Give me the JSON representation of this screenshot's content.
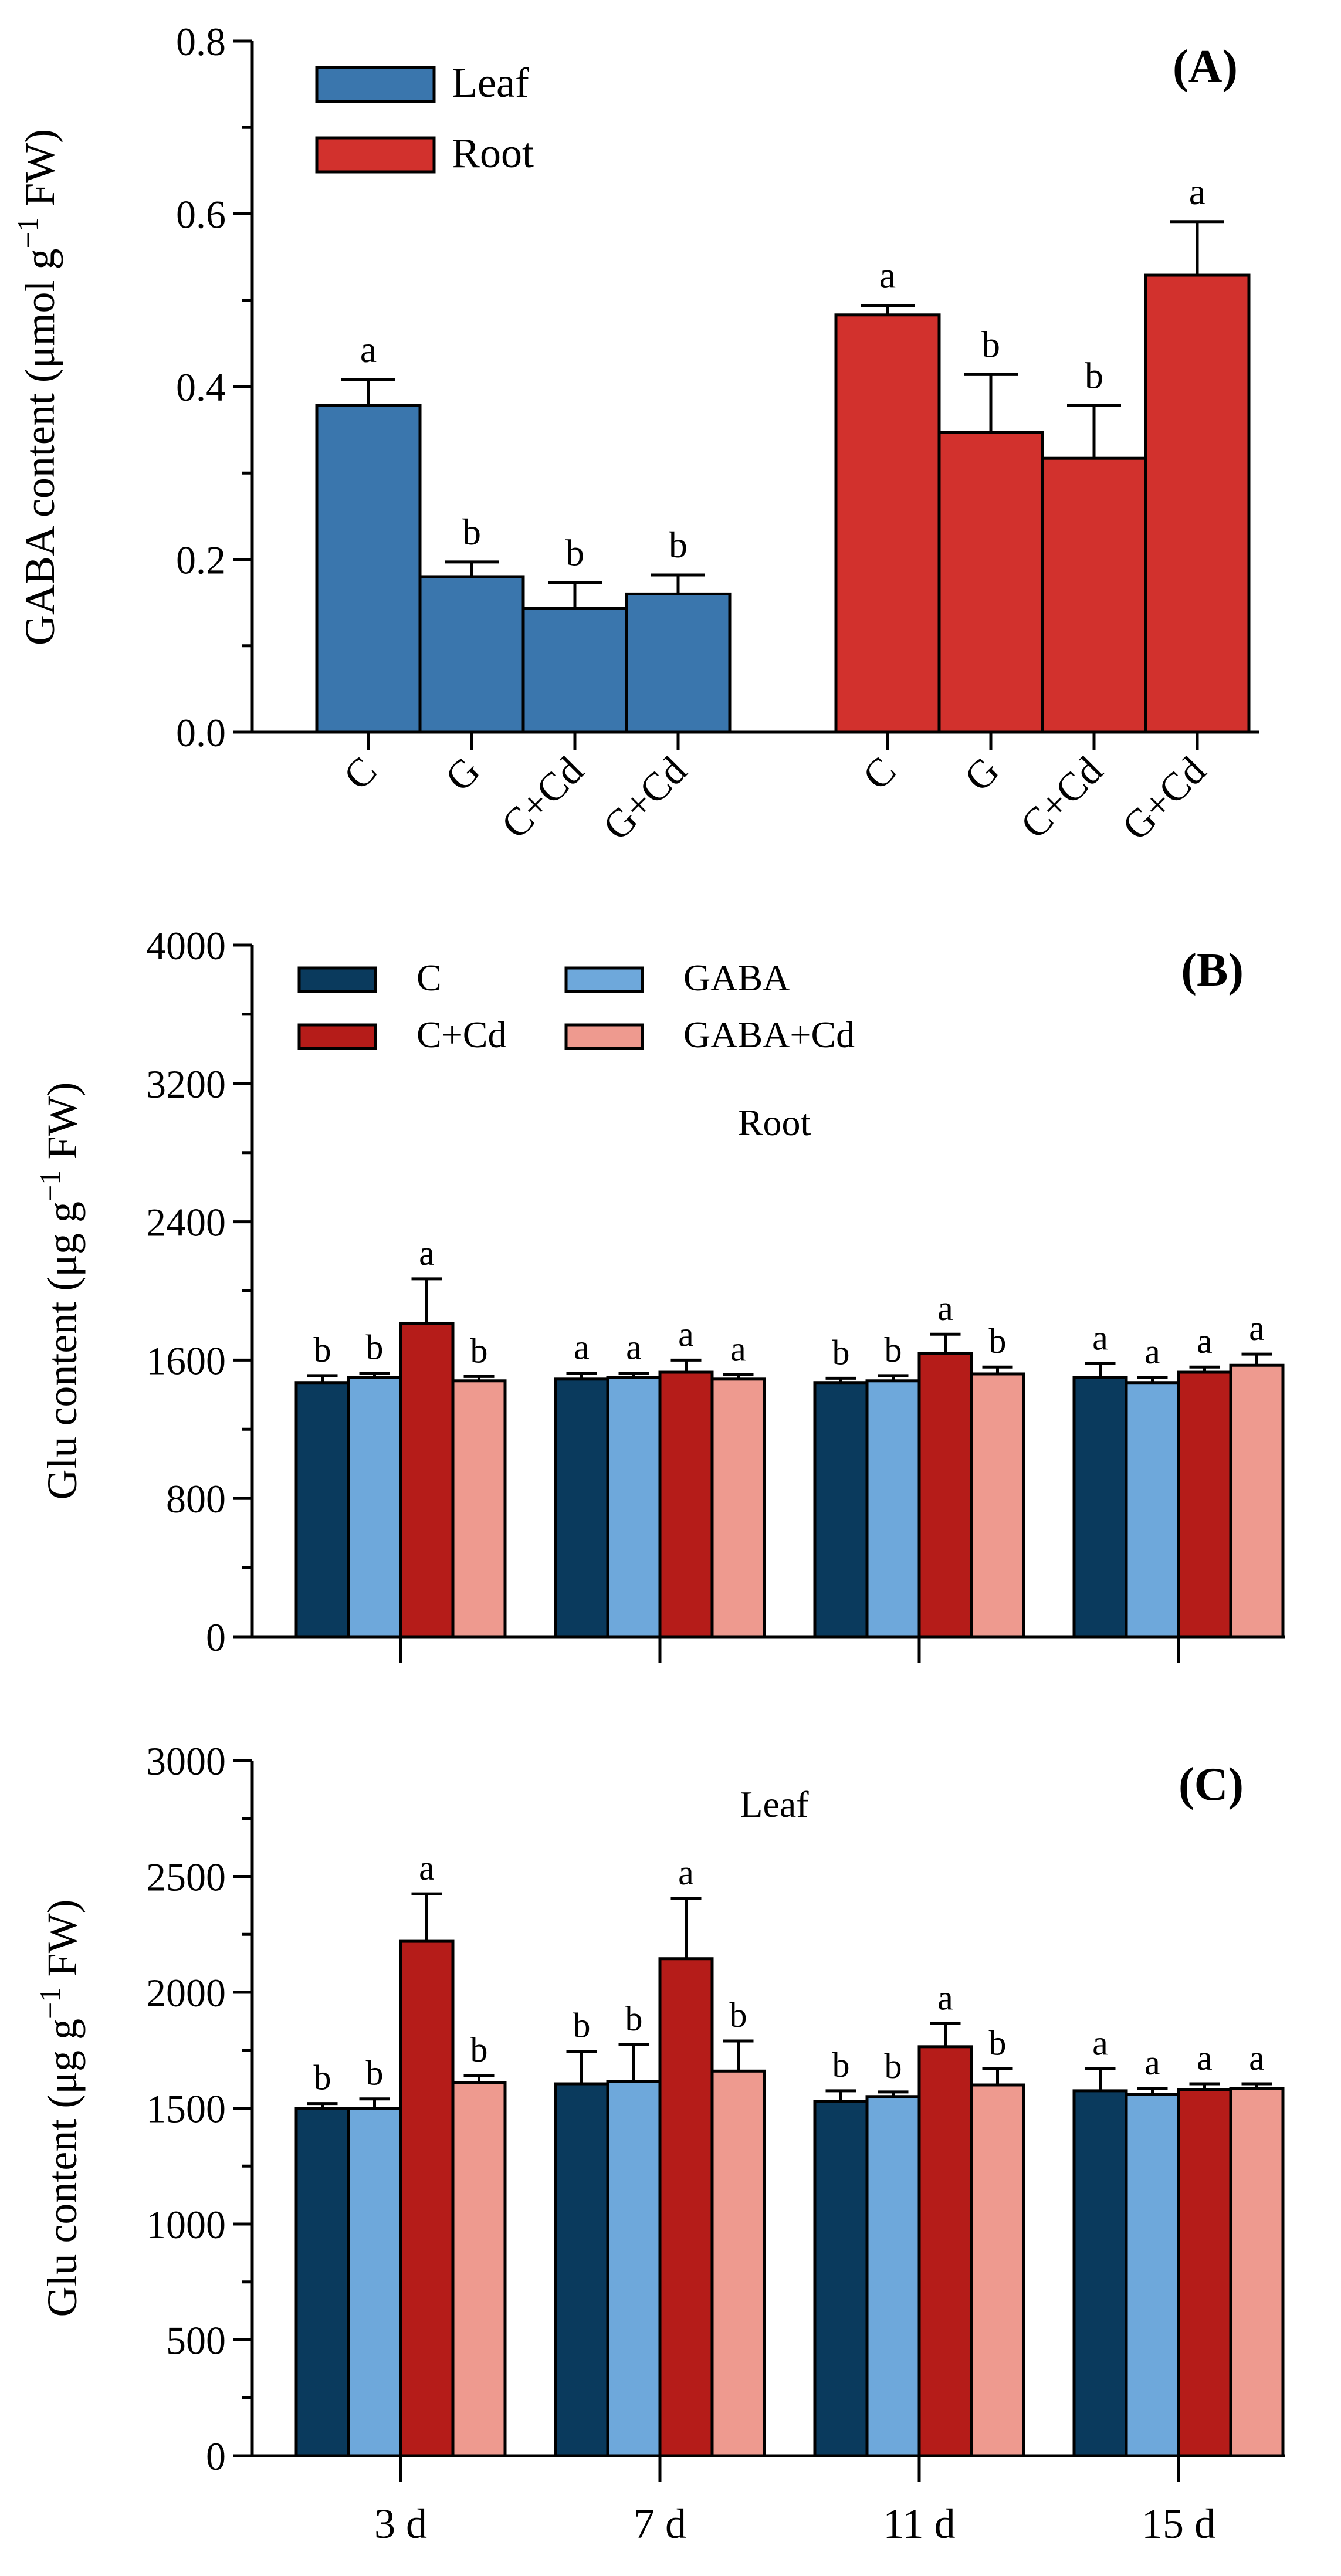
{
  "chart_data": [
    {
      "panel": "A",
      "type": "bar",
      "panel_label": "(A)",
      "ylabel": "GABA content (μmol g−1 FW)",
      "ylim": [
        0,
        0.8
      ],
      "yticks": [
        "0.0",
        "0.2",
        "0.4",
        "0.6",
        "0.8"
      ],
      "ytick_values": [
        0,
        0.2,
        0.4,
        0.6,
        0.8
      ],
      "legend": [
        {
          "name": "Leaf",
          "color": "#3a76ad"
        },
        {
          "name": "Root",
          "color": "#d2312d"
        }
      ],
      "groups": [
        {
          "name": "Leaf",
          "color": "#3a76ad",
          "categories": [
            "C",
            "G",
            "C+Cd",
            "G+Cd"
          ],
          "values": [
            0.378,
            0.18,
            0.143,
            0.16
          ],
          "errors": [
            0.03,
            0.017,
            0.03,
            0.022
          ],
          "letters": [
            "a",
            "b",
            "b",
            "b"
          ]
        },
        {
          "name": "Root",
          "color": "#d2312d",
          "categories": [
            "C",
            "G",
            "C+Cd",
            "G+Cd"
          ],
          "values": [
            0.483,
            0.347,
            0.317,
            0.529
          ],
          "errors": [
            0.011,
            0.067,
            0.061,
            0.062
          ],
          "letters": [
            "a",
            "b",
            "b",
            "a"
          ]
        }
      ]
    },
    {
      "panel": "B",
      "type": "bar",
      "panel_label": "(B)",
      "title": "Root",
      "ylabel": "Glu content (μg g−1 FW)",
      "ylim": [
        0,
        4000
      ],
      "yticks": [
        "0",
        "800",
        "1600",
        "2400",
        "3200",
        "4000"
      ],
      "ytick_values": [
        0,
        800,
        1600,
        2400,
        3200,
        4000
      ],
      "legend": [
        {
          "name": "C",
          "color": "#0a3a5d"
        },
        {
          "name": "GABA",
          "color": "#6ea8db"
        },
        {
          "name": "C+Cd",
          "color": "#b51c19"
        },
        {
          "name": "GABA+Cd",
          "color": "#ee9a8f"
        }
      ],
      "categories": [
        "3 d",
        "7 d",
        "11 d",
        "15 d"
      ],
      "series": [
        {
          "name": "C",
          "color": "#0a3a5d",
          "values": [
            1470,
            1490,
            1470,
            1500
          ],
          "errors": [
            40,
            35,
            25,
            80
          ],
          "letters": [
            "b",
            "a",
            "b",
            "a"
          ]
        },
        {
          "name": "GABA",
          "color": "#6ea8db",
          "values": [
            1500,
            1500,
            1480,
            1470
          ],
          "errors": [
            25,
            25,
            30,
            30
          ],
          "letters": [
            "b",
            "a",
            "b",
            "a"
          ]
        },
        {
          "name": "C+Cd",
          "color": "#b51c19",
          "values": [
            1810,
            1530,
            1640,
            1530
          ],
          "errors": [
            260,
            70,
            110,
            30
          ],
          "letters": [
            "a",
            "a",
            "a",
            "a"
          ]
        },
        {
          "name": "GABA+Cd",
          "color": "#ee9a8f",
          "values": [
            1480,
            1490,
            1520,
            1570
          ],
          "errors": [
            25,
            25,
            40,
            65
          ],
          "letters": [
            "b",
            "a",
            "b",
            "a"
          ]
        }
      ]
    },
    {
      "panel": "C",
      "type": "bar",
      "panel_label": "(C)",
      "title": "Leaf",
      "ylabel": "Glu content (μg g−1 FW)",
      "ylim": [
        0,
        3000
      ],
      "yticks": [
        "0",
        "500",
        "1000",
        "1500",
        "2000",
        "2500",
        "3000"
      ],
      "ytick_values": [
        0,
        500,
        1000,
        1500,
        2000,
        2500,
        3000
      ],
      "categories": [
        "3 d",
        "7 d",
        "11 d",
        "15 d"
      ],
      "series": [
        {
          "name": "C",
          "color": "#0a3a5d",
          "values": [
            1500,
            1605,
            1530,
            1575
          ],
          "errors": [
            20,
            140,
            45,
            95
          ],
          "letters": [
            "b",
            "b",
            "b",
            "a"
          ]
        },
        {
          "name": "GABA",
          "color": "#6ea8db",
          "values": [
            1500,
            1615,
            1550,
            1560
          ],
          "errors": [
            40,
            160,
            20,
            25
          ],
          "letters": [
            "b",
            "b",
            "b",
            "a"
          ]
        },
        {
          "name": "C+Cd",
          "color": "#b51c19",
          "values": [
            2220,
            2145,
            1765,
            1580
          ],
          "errors": [
            205,
            260,
            100,
            25
          ],
          "letters": [
            "a",
            "a",
            "a",
            "a"
          ]
        },
        {
          "name": "GABA+Cd",
          "color": "#ee9a8f",
          "values": [
            1610,
            1660,
            1600,
            1585
          ],
          "errors": [
            30,
            130,
            70,
            20
          ],
          "letters": [
            "b",
            "b",
            "b",
            "a"
          ]
        }
      ]
    }
  ]
}
